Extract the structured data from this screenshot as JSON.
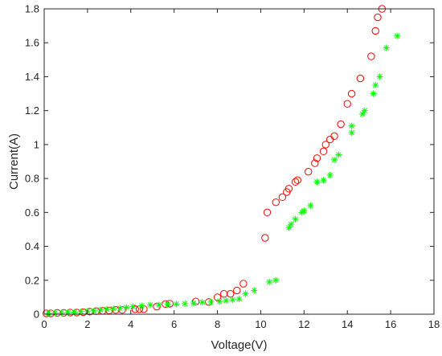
{
  "chart_data": {
    "type": "scatter",
    "title": "",
    "xlabel": "Voltage(V)",
    "ylabel": "Current(A)",
    "xlim": [
      0,
      18
    ],
    "ylim": [
      0,
      1.8
    ],
    "xticks": [
      0,
      2,
      4,
      6,
      8,
      10,
      12,
      14,
      16,
      18
    ],
    "yticks": [
      0,
      0.2,
      0.4,
      0.6,
      0.8,
      1,
      1.2,
      1.4,
      1.6,
      1.8
    ],
    "grid": false,
    "legend": "none",
    "series": [
      {
        "marker": "circle",
        "color": "#ff0000",
        "x": [
          0.1,
          0.3,
          0.6,
          0.9,
          1.2,
          1.5,
          1.8,
          2.1,
          2.4,
          2.7,
          3.0,
          3.3,
          3.6,
          4.2,
          4.4,
          4.6,
          5.2,
          5.6,
          5.8,
          7.0,
          7.6,
          8.0,
          8.3,
          8.6,
          8.9,
          9.2,
          10.2,
          10.3,
          10.7,
          11.0,
          11.2,
          11.3,
          11.6,
          11.7,
          12.2,
          12.5,
          12.6,
          12.9,
          13.0,
          13.2,
          13.4,
          13.7,
          14.0,
          14.2,
          14.6,
          15.1,
          15.3,
          15.4,
          15.6
        ],
        "y": [
          0.005,
          0.005,
          0.008,
          0.008,
          0.01,
          0.01,
          0.012,
          0.015,
          0.018,
          0.02,
          0.022,
          0.025,
          0.025,
          0.03,
          0.03,
          0.03,
          0.045,
          0.06,
          0.062,
          0.075,
          0.072,
          0.1,
          0.12,
          0.12,
          0.14,
          0.18,
          0.45,
          0.6,
          0.66,
          0.69,
          0.72,
          0.74,
          0.78,
          0.79,
          0.84,
          0.89,
          0.92,
          0.96,
          1.0,
          1.03,
          1.05,
          1.12,
          1.24,
          1.3,
          1.39,
          1.52,
          1.67,
          1.75,
          1.8
        ]
      },
      {
        "marker": "asterisk",
        "color": "#00ff00",
        "x": [
          0.2,
          0.5,
          0.8,
          1.1,
          1.4,
          1.7,
          2.0,
          2.3,
          2.6,
          2.9,
          3.2,
          3.5,
          3.8,
          4.1,
          4.5,
          4.9,
          5.3,
          5.7,
          6.1,
          6.5,
          6.9,
          7.3,
          7.7,
          8.1,
          8.4,
          8.7,
          9.0,
          9.3,
          9.7,
          10.4,
          10.7,
          11.3,
          11.4,
          11.6,
          11.9,
          12.0,
          12.3,
          12.6,
          12.9,
          13.2,
          13.4,
          13.6,
          14.2,
          14.2,
          14.7,
          14.8,
          15.2,
          15.3,
          15.5,
          15.8,
          16.3
        ],
        "y": [
          0.005,
          0.008,
          0.008,
          0.01,
          0.012,
          0.015,
          0.018,
          0.02,
          0.025,
          0.03,
          0.032,
          0.035,
          0.04,
          0.045,
          0.05,
          0.055,
          0.055,
          0.058,
          0.06,
          0.062,
          0.065,
          0.07,
          0.072,
          0.075,
          0.08,
          0.085,
          0.09,
          0.12,
          0.14,
          0.19,
          0.2,
          0.51,
          0.53,
          0.56,
          0.6,
          0.61,
          0.64,
          0.78,
          0.79,
          0.82,
          0.91,
          0.94,
          1.07,
          1.11,
          1.18,
          1.2,
          1.3,
          1.35,
          1.4,
          1.57,
          1.64
        ]
      }
    ]
  }
}
